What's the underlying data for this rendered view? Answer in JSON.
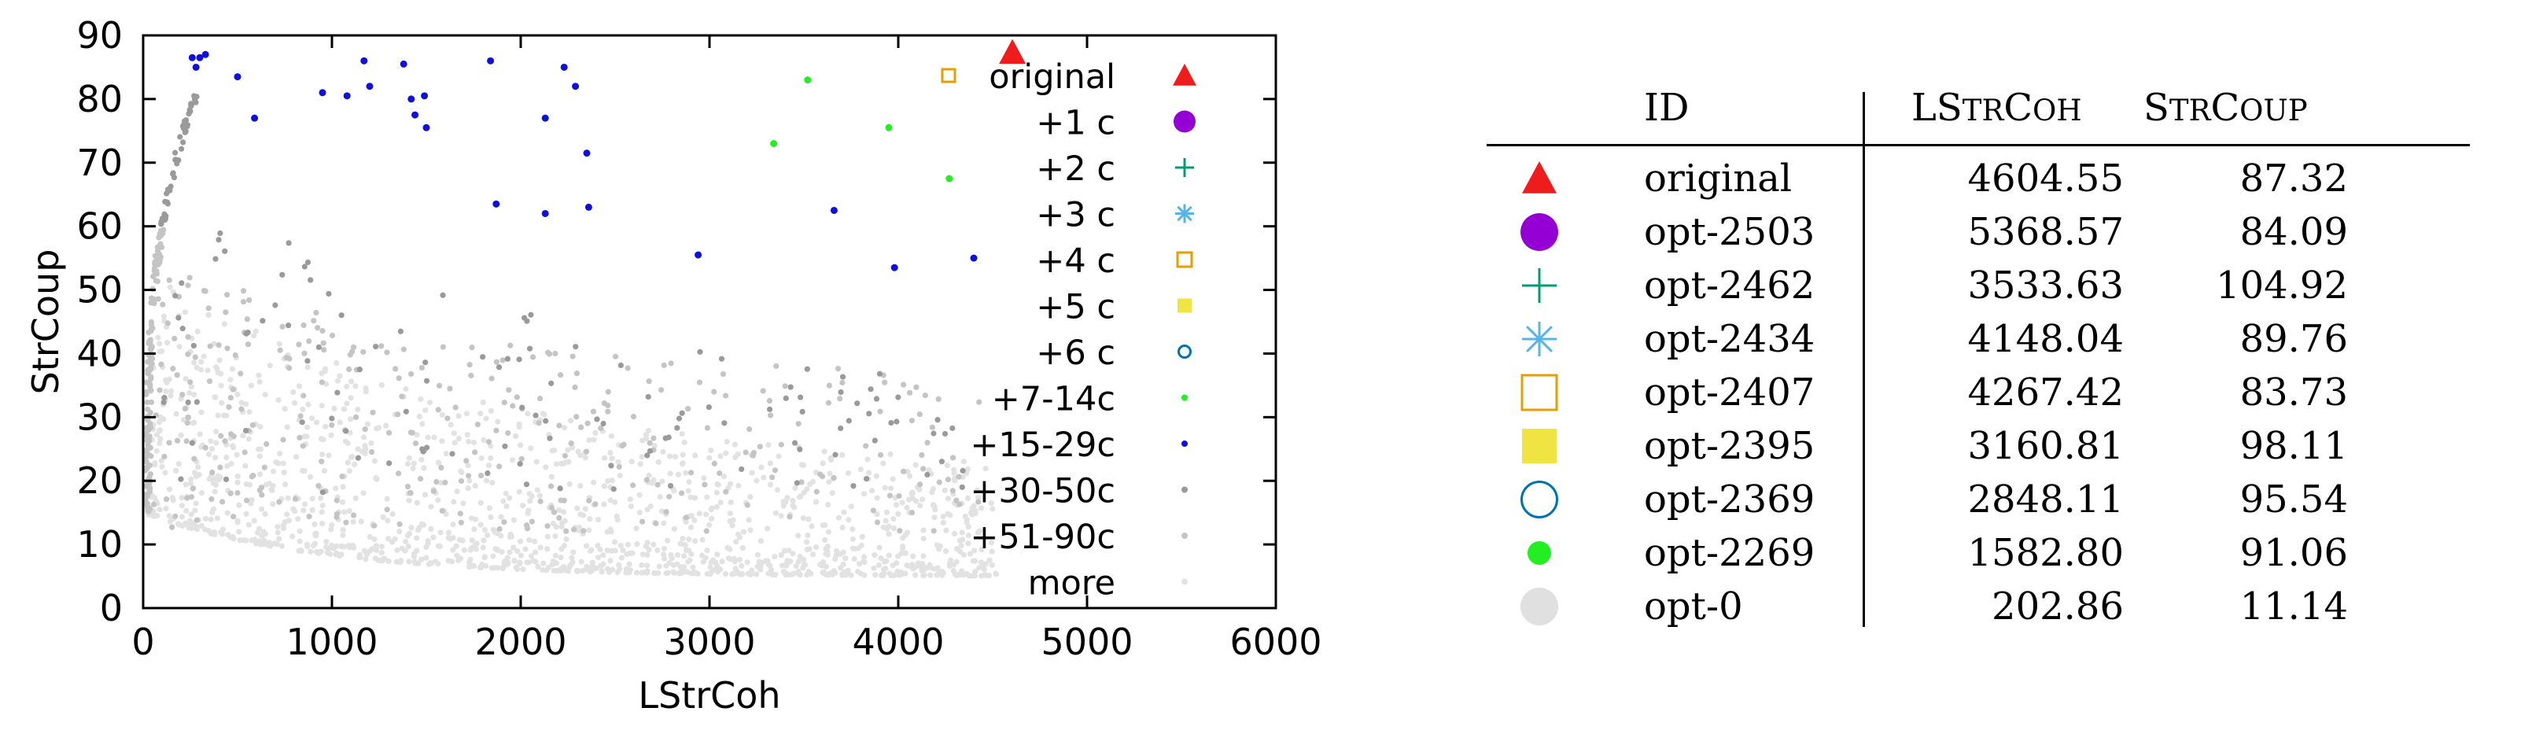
{
  "colors": {
    "original": "#ee1c1c",
    "c1": "#9400d3",
    "c2": "#009e73",
    "c3": "#56b4e9",
    "c4": "#e69f00",
    "c5": "#f0e442",
    "c6": "#0072b2",
    "c7_14": "#22ee22",
    "c15_29": "#1010dd",
    "c30_50": "#9a9a9a",
    "c51_90": "#c4c4c4",
    "more": "#e2e2e2",
    "opt0": "#e0e0e0"
  },
  "chart_data": {
    "type": "scatter",
    "xlabel": "LStrCoh",
    "ylabel": "StrCoup",
    "xlim": [
      0,
      6000
    ],
    "ylim": [
      0,
      90
    ],
    "xticks": [
      "0",
      "1000",
      "2000",
      "3000",
      "4000",
      "5000",
      "6000"
    ],
    "yticks": [
      "0",
      "10",
      "20",
      "30",
      "40",
      "50",
      "60",
      "70",
      "80",
      "90"
    ],
    "grid": false,
    "legend_position": "top-right",
    "series": [
      {
        "name": "original",
        "marker": "triangle",
        "color": "#ee1c1c",
        "points": [
          [
            4604.55,
            87.32
          ]
        ]
      },
      {
        "name": "+1 c",
        "marker": "circle",
        "color": "#9400d3",
        "points": []
      },
      {
        "name": "+2 c",
        "marker": "plus",
        "color": "#009e73",
        "points": []
      },
      {
        "name": "+3 c",
        "marker": "star",
        "color": "#56b4e9",
        "points": []
      },
      {
        "name": "+4 c",
        "marker": "square-open",
        "color": "#e69f00",
        "points": []
      },
      {
        "name": "+5 c",
        "marker": "square",
        "color": "#f0e442",
        "points": []
      },
      {
        "name": "+6 c",
        "marker": "circle-open",
        "color": "#0072b2",
        "points": []
      },
      {
        "name": "+7-14c",
        "marker": "dot",
        "color": "#22ee22",
        "points": [
          [
            3520,
            83
          ],
          [
            3950,
            75.5
          ],
          [
            3340,
            73
          ],
          [
            4270,
            67.5
          ]
        ]
      },
      {
        "name": "+15-29c",
        "marker": "dot",
        "color": "#1010dd",
        "points": [
          [
            260,
            86.5
          ],
          [
            300,
            86.5
          ],
          [
            330,
            87
          ],
          [
            280,
            85
          ],
          [
            500,
            83.5
          ],
          [
            590,
            77
          ],
          [
            950,
            81
          ],
          [
            1080,
            80.5
          ],
          [
            1170,
            86
          ],
          [
            1200,
            82
          ],
          [
            1380,
            85.5
          ],
          [
            1420,
            80
          ],
          [
            1440,
            77.5
          ],
          [
            1490,
            80.5
          ],
          [
            1500,
            75.5
          ],
          [
            1840,
            86
          ],
          [
            1870,
            63.5
          ],
          [
            2130,
            77
          ],
          [
            2130,
            62
          ],
          [
            2230,
            85
          ],
          [
            2290,
            82
          ],
          [
            2350,
            71.5
          ],
          [
            2360,
            63
          ],
          [
            2940,
            55.5
          ],
          [
            3660,
            62.5
          ],
          [
            3980,
            53.5
          ],
          [
            4400,
            55
          ]
        ]
      },
      {
        "name": "+30-50c",
        "marker": "dot",
        "color": "#9a9a9a",
        "points": []
      },
      {
        "name": "+51-90c",
        "marker": "dot",
        "color": "#c4c4c4",
        "points": []
      },
      {
        "name": "more",
        "marker": "dot",
        "color": "#e2e2e2",
        "points": []
      }
    ]
  },
  "table": {
    "headers": {
      "id": "ID",
      "lstrcoh_first": "LS",
      "lstrcoh_rest1": "TR",
      "lstrcoh_mid": "C",
      "lstrcoh_rest2": "OH",
      "strcoup_first": "S",
      "strcoup_rest1": "TR",
      "strcoup_mid": "C",
      "strcoup_rest2": "OUP"
    },
    "rows": [
      {
        "id": "original",
        "lstrcoh": "4604.55",
        "strcoup": "87.32",
        "marker": "triangle",
        "color": "#ee1c1c"
      },
      {
        "id": "opt-2503",
        "lstrcoh": "5368.57",
        "strcoup": "84.09",
        "marker": "circle",
        "color": "#9400d3"
      },
      {
        "id": "opt-2462",
        "lstrcoh": "3533.63",
        "strcoup": "104.92",
        "marker": "plus",
        "color": "#009e73"
      },
      {
        "id": "opt-2434",
        "lstrcoh": "4148.04",
        "strcoup": "89.76",
        "marker": "star",
        "color": "#56b4e9"
      },
      {
        "id": "opt-2407",
        "lstrcoh": "4267.42",
        "strcoup": "83.73",
        "marker": "square-open",
        "color": "#e69f00"
      },
      {
        "id": "opt-2395",
        "lstrcoh": "3160.81",
        "strcoup": "98.11",
        "marker": "square",
        "color": "#f0e442"
      },
      {
        "id": "opt-2369",
        "lstrcoh": "2848.11",
        "strcoup": "95.54",
        "marker": "circle-open",
        "color": "#0072b2"
      },
      {
        "id": "opt-2269",
        "lstrcoh": "1582.80",
        "strcoup": "91.06",
        "marker": "dot-big",
        "color": "#22ee22"
      },
      {
        "id": "opt-0",
        "lstrcoh": "202.86",
        "strcoup": "11.14",
        "marker": "circle-gray",
        "color": "#e0e0e0"
      }
    ]
  }
}
